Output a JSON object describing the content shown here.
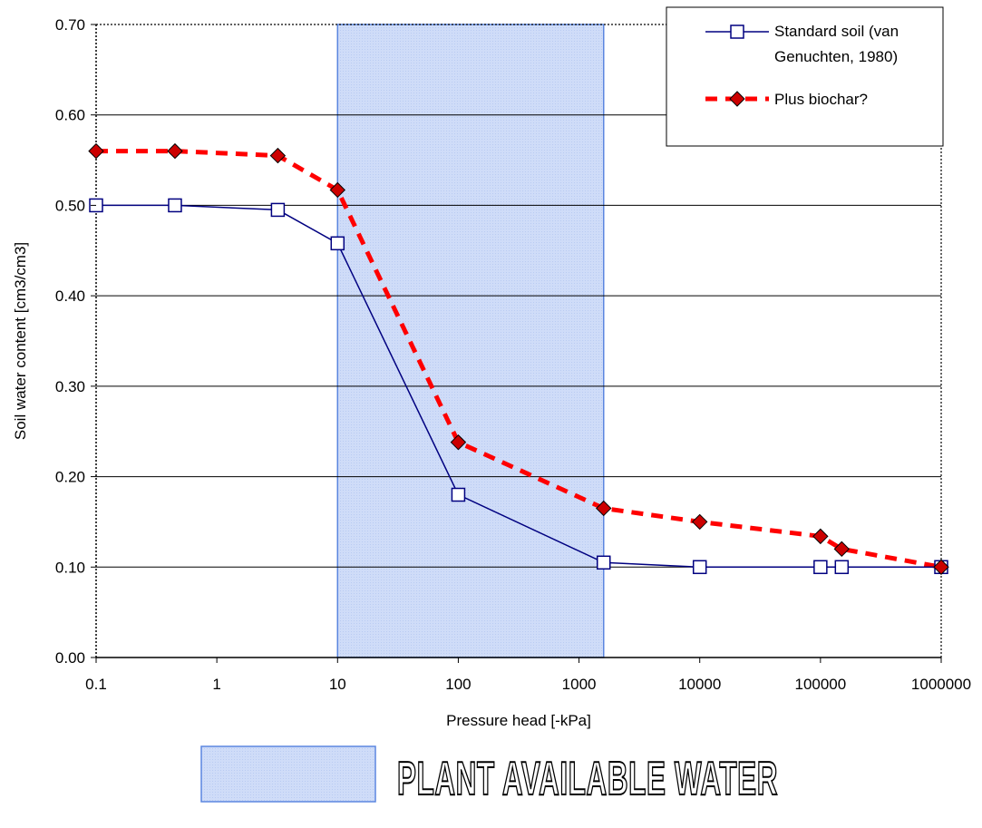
{
  "chart_data": {
    "type": "line",
    "xscale": "log",
    "xlim": [
      0.1,
      1000000
    ],
    "ylim": [
      0,
      0.7
    ],
    "xlabel": "Pressure head [-kPa]",
    "ylabel": "Soil water content [cm3/cm3]",
    "x_ticks": [
      "0.1",
      "1",
      "10",
      "100",
      "1000",
      "10000",
      "100000",
      "1000000"
    ],
    "y_ticks": [
      "0.00",
      "0.10",
      "0.20",
      "0.30",
      "0.40",
      "0.50",
      "0.60",
      "0.70"
    ],
    "grid": "horizontal",
    "legend_position": "top-right",
    "series": [
      {
        "name": "Standard soil (van Genuchten, 1980)",
        "legend_lines": [
          "Standard soil (van",
          "Genuchten, 1980)"
        ],
        "style": "solid line, open square markers",
        "color": "#000080",
        "x": [
          0.1,
          0.45,
          3.2,
          10,
          100,
          1600,
          10000,
          100000,
          150000,
          1000000
        ],
        "y": [
          0.5,
          0.5,
          0.495,
          0.458,
          0.18,
          0.105,
          0.1,
          0.1,
          0.1,
          0.1
        ]
      },
      {
        "name": "Plus biochar?",
        "legend_lines": [
          "Plus biochar?"
        ],
        "style": "dashed line, diamond markers",
        "color": "#ff0000",
        "marker_color": "#cc0000",
        "x": [
          0.1,
          0.45,
          3.2,
          10,
          100,
          1600,
          10000,
          100000,
          150000,
          1000000
        ],
        "y": [
          0.56,
          0.56,
          0.555,
          0.517,
          0.238,
          0.165,
          0.15,
          0.134,
          0.12,
          0.1
        ]
      }
    ],
    "shaded_region": {
      "x_range": [
        10,
        1600
      ],
      "color": "#ccd9f8",
      "border_color": "#5b86e0",
      "label": "PLANT AVAILABLE WATER"
    }
  }
}
